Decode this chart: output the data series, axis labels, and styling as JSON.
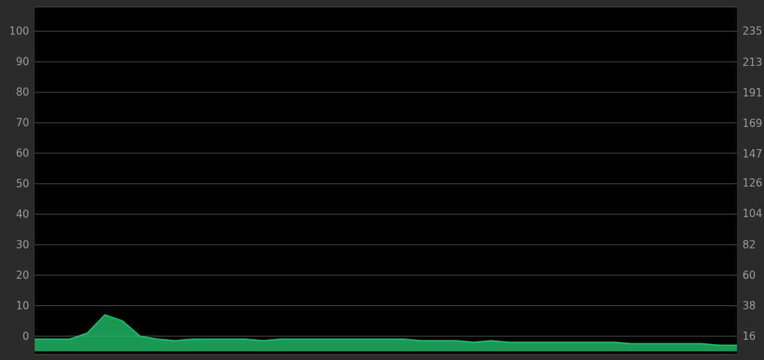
{
  "chart_data": {
    "type": "line",
    "categories": [
      null,
      null,
      null,
      null,
      null,
      null,
      null,
      null,
      null,
      null,
      null,
      null,
      null,
      null,
      null,
      null,
      null,
      null,
      null,
      null,
      null,
      null,
      null,
      null,
      null,
      null,
      null,
      null,
      null,
      null,
      null,
      null,
      null,
      null,
      null,
      null,
      null,
      null,
      null,
      null,
      null
    ],
    "series": [
      {
        "color": "#1fbf6a",
        "values": [
          -1,
          -1,
          -1,
          1,
          7,
          5,
          0,
          -1,
          -1.5,
          -1,
          -1,
          -1,
          -1,
          -1.5,
          -1,
          -1,
          -1,
          -1,
          -1,
          -1,
          -1,
          -1,
          -1.5,
          -1.5,
          -1.5,
          -2,
          -1.5,
          -2,
          -2,
          -2,
          -2,
          -2,
          -2,
          -2,
          -2.5,
          -2.5,
          -2.5,
          -2.5,
          -2.5,
          -3,
          -3
        ],
        "upper": [
          -1,
          -1,
          -1,
          1,
          7,
          5,
          0,
          -1,
          -1.5,
          -1,
          -1,
          -1,
          -1,
          -1.5,
          -1,
          -1,
          -1,
          -1,
          -1,
          -1,
          -1,
          -1,
          -1.5,
          -1.5,
          -1.5,
          -2,
          -1.5,
          -2,
          -2,
          -2,
          -2,
          -2,
          -2,
          -2,
          -2.5,
          -2.5,
          -2.5,
          -2.5,
          -2.5,
          -3,
          -3
        ],
        "lower": [
          -5,
          -5,
          -5,
          -5,
          -5,
          -5,
          -5,
          -5,
          -5,
          -5,
          -5,
          -5,
          -5,
          -5,
          -5,
          -5,
          -5,
          -5,
          -5,
          -5,
          -5,
          -5,
          -5,
          -5,
          -5,
          -5,
          -5,
          -5,
          -5,
          -5,
          -5,
          -5,
          -5,
          -5,
          -5,
          -5,
          -5,
          -5,
          -5,
          -5,
          -5
        ]
      }
    ],
    "ylim": [
      -6,
      108
    ],
    "yticks": [
      0,
      10,
      20,
      30,
      40,
      50,
      60,
      70,
      80,
      90,
      100
    ],
    "y2lim": [
      2.9,
      252.5
    ],
    "y2ticks": [
      16,
      38,
      60,
      82,
      104,
      126,
      147,
      169,
      191,
      213,
      235
    ],
    "grid": "y",
    "tick_labels": "y"
  }
}
